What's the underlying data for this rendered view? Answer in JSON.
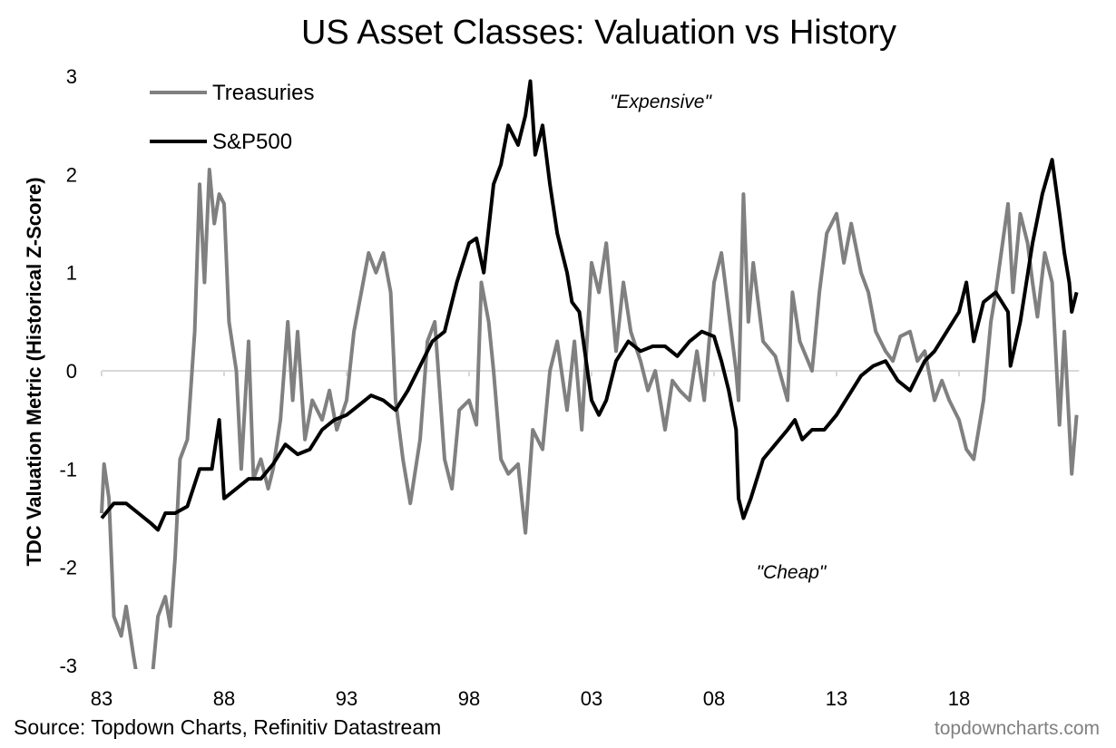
{
  "chart_data": {
    "type": "line",
    "title": "US Asset Classes: Valuation vs History",
    "xlabel": "",
    "ylabel": "TDC Valuation Metric (Historical Z-Score)",
    "ylim": [
      -3,
      3
    ],
    "xlim": [
      1983,
      2023
    ],
    "yticks": [
      -3,
      -2,
      -1,
      0,
      1,
      2,
      3
    ],
    "ytick_labels": [
      "-3",
      "-2",
      "-1",
      "0",
      "1",
      "2",
      "3"
    ],
    "xticks": [
      1983,
      1988,
      1993,
      1998,
      2003,
      2008,
      2013,
      2018
    ],
    "xtick_labels": [
      "83",
      "88",
      "93",
      "98",
      "03",
      "08",
      "13",
      "18"
    ],
    "grid": false,
    "legend_position": "top-left",
    "annotations": [
      "\"Expensive\"",
      "\"Cheap\""
    ],
    "source": "Source: Topdown Charts, Refinitiv Datastream",
    "watermark": "topdowncharts.com",
    "series": [
      {
        "name": "Treasuries",
        "color": "#808080",
        "x": [
          1983.0,
          1983.1,
          1983.3,
          1983.5,
          1983.8,
          1984.0,
          1984.3,
          1984.5,
          1985.0,
          1985.3,
          1985.6,
          1985.8,
          1986.0,
          1986.2,
          1986.5,
          1986.8,
          1987.0,
          1987.2,
          1987.4,
          1987.6,
          1987.8,
          1988.0,
          1988.2,
          1988.5,
          1988.7,
          1989.0,
          1989.2,
          1989.5,
          1989.8,
          1990.0,
          1990.3,
          1990.6,
          1990.8,
          1991.0,
          1991.3,
          1991.6,
          1992.0,
          1992.3,
          1992.6,
          1993.0,
          1993.3,
          1993.6,
          1993.9,
          1994.2,
          1994.5,
          1994.8,
          1995.0,
          1995.3,
          1995.6,
          1996.0,
          1996.3,
          1996.6,
          1997.0,
          1997.3,
          1997.6,
          1998.0,
          1998.3,
          1998.5,
          1998.8,
          1999.0,
          1999.3,
          1999.6,
          2000.0,
          2000.3,
          2000.6,
          2001.0,
          2001.3,
          2001.6,
          2002.0,
          2002.3,
          2002.6,
          2003.0,
          2003.3,
          2003.6,
          2004.0,
          2004.3,
          2004.6,
          2005.0,
          2005.3,
          2005.6,
          2006.0,
          2006.3,
          2006.6,
          2007.0,
          2007.3,
          2007.6,
          2008.0,
          2008.3,
          2008.6,
          2008.9,
          2009.0,
          2009.2,
          2009.4,
          2009.6,
          2010.0,
          2010.5,
          2011.0,
          2011.2,
          2011.5,
          2012.0,
          2012.3,
          2012.6,
          2013.0,
          2013.3,
          2013.6,
          2014.0,
          2014.3,
          2014.6,
          2015.0,
          2015.3,
          2015.6,
          2016.0,
          2016.3,
          2016.6,
          2017.0,
          2017.3,
          2017.6,
          2018.0,
          2018.3,
          2018.6,
          2019.0,
          2019.3,
          2019.5,
          2020.0,
          2020.2,
          2020.5,
          2020.8,
          2021.0,
          2021.2,
          2021.5,
          2021.8,
          2022.1,
          2022.3,
          2022.6,
          2022.8
        ],
        "values": [
          -1.45,
          -0.95,
          -1.3,
          -2.5,
          -2.7,
          -2.4,
          -2.9,
          -3.2,
          -3.3,
          -2.5,
          -2.3,
          -2.6,
          -1.9,
          -0.9,
          -0.7,
          0.4,
          1.9,
          0.9,
          2.05,
          1.5,
          1.8,
          1.7,
          0.5,
          0.0,
          -1.0,
          0.3,
          -1.1,
          -0.9,
          -1.2,
          -1.0,
          -0.5,
          0.5,
          -0.3,
          0.4,
          -0.7,
          -0.3,
          -0.5,
          -0.2,
          -0.6,
          -0.3,
          0.4,
          0.8,
          1.2,
          1.0,
          1.2,
          0.8,
          -0.3,
          -0.9,
          -1.35,
          -0.7,
          0.3,
          0.5,
          -0.9,
          -1.2,
          -0.4,
          -0.3,
          -0.55,
          0.9,
          0.5,
          0.0,
          -0.9,
          -1.05,
          -0.95,
          -1.65,
          -0.6,
          -0.8,
          0.0,
          0.3,
          -0.4,
          0.3,
          -0.6,
          1.1,
          0.8,
          1.3,
          0.2,
          0.9,
          0.4,
          0.1,
          -0.2,
          0.0,
          -0.6,
          -0.1,
          -0.2,
          -0.3,
          0.2,
          -0.3,
          0.9,
          1.2,
          0.6,
          0.0,
          -0.3,
          1.8,
          0.5,
          1.1,
          0.3,
          0.15,
          -0.3,
          0.8,
          0.3,
          0.0,
          0.8,
          1.4,
          1.6,
          1.1,
          1.5,
          1.0,
          0.8,
          0.4,
          0.2,
          0.1,
          0.35,
          0.4,
          0.1,
          0.2,
          -0.3,
          -0.1,
          -0.3,
          -0.5,
          -0.8,
          -0.9,
          -0.3,
          0.5,
          0.8,
          1.7,
          0.8,
          1.6,
          1.3,
          0.9,
          0.55,
          1.2,
          0.9,
          -0.55,
          0.4,
          -1.05,
          -0.45
        ]
      },
      {
        "name": "S&P500",
        "color": "#000000",
        "x": [
          1983.0,
          1983.5,
          1984.0,
          1984.5,
          1985.0,
          1985.3,
          1985.6,
          1986.0,
          1986.5,
          1987.0,
          1987.5,
          1987.8,
          1988.0,
          1988.5,
          1989.0,
          1989.5,
          1990.0,
          1990.5,
          1991.0,
          1991.5,
          1992.0,
          1992.5,
          1993.0,
          1993.5,
          1994.0,
          1994.5,
          1995.0,
          1995.5,
          1996.0,
          1996.5,
          1997.0,
          1997.5,
          1998.0,
          1998.3,
          1998.6,
          1999.0,
          1999.3,
          1999.6,
          2000.0,
          2000.3,
          2000.5,
          2000.7,
          2001.0,
          2001.3,
          2001.6,
          2002.0,
          2002.2,
          2002.5,
          2003.0,
          2003.3,
          2003.6,
          2004.0,
          2004.5,
          2005.0,
          2005.5,
          2006.0,
          2006.5,
          2007.0,
          2007.5,
          2008.0,
          2008.3,
          2008.6,
          2008.9,
          2009.0,
          2009.2,
          2009.5,
          2010.0,
          2010.5,
          2011.0,
          2011.3,
          2011.6,
          2012.0,
          2012.5,
          2013.0,
          2013.5,
          2014.0,
          2014.5,
          2015.0,
          2015.5,
          2016.0,
          2016.3,
          2016.6,
          2017.0,
          2017.5,
          2018.0,
          2018.3,
          2018.6,
          2019.0,
          2019.5,
          2020.0,
          2020.1,
          2020.5,
          2021.0,
          2021.4,
          2021.8,
          2022.1,
          2022.3,
          2022.5,
          2022.6,
          2022.8
        ],
        "values": [
          -1.5,
          -1.35,
          -1.35,
          -1.45,
          -1.55,
          -1.62,
          -1.45,
          -1.45,
          -1.38,
          -1.0,
          -1.0,
          -0.5,
          -1.3,
          -1.2,
          -1.1,
          -1.1,
          -0.95,
          -0.75,
          -0.85,
          -0.8,
          -0.6,
          -0.5,
          -0.45,
          -0.35,
          -0.25,
          -0.3,
          -0.4,
          -0.2,
          0.05,
          0.3,
          0.4,
          0.9,
          1.3,
          1.35,
          1.0,
          1.9,
          2.1,
          2.5,
          2.3,
          2.6,
          2.95,
          2.2,
          2.5,
          1.9,
          1.4,
          1.0,
          0.7,
          0.6,
          -0.3,
          -0.45,
          -0.3,
          0.1,
          0.3,
          0.2,
          0.25,
          0.25,
          0.15,
          0.3,
          0.4,
          0.35,
          0.1,
          -0.2,
          -0.6,
          -1.3,
          -1.5,
          -1.3,
          -0.9,
          -0.75,
          -0.6,
          -0.5,
          -0.7,
          -0.6,
          -0.6,
          -0.45,
          -0.25,
          -0.05,
          0.05,
          0.1,
          -0.1,
          -0.2,
          -0.05,
          0.1,
          0.2,
          0.4,
          0.6,
          0.9,
          0.3,
          0.7,
          0.8,
          0.6,
          0.05,
          0.5,
          1.3,
          1.8,
          2.15,
          1.6,
          1.2,
          0.9,
          0.6,
          0.8
        ]
      }
    ]
  }
}
